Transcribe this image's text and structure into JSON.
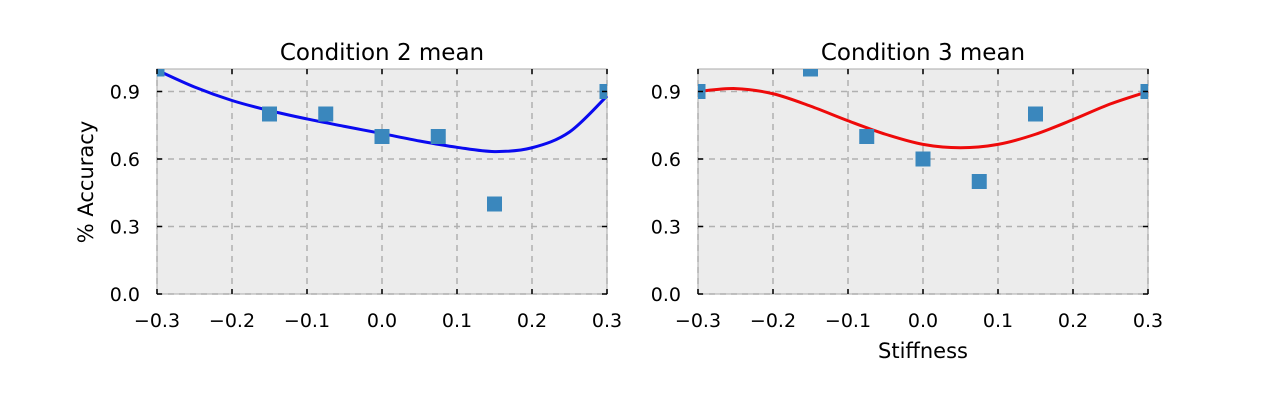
{
  "chart_data": [
    {
      "type": "scatter",
      "title": "Condition 2 mean",
      "xlabel": "",
      "ylabel": "% Accuracy",
      "xlim": [
        -0.3,
        0.3
      ],
      "ylim": [
        0.0,
        1.0
      ],
      "xticks": [
        "−0.3",
        "−0.2",
        "−0.1",
        "0.0",
        "0.1",
        "0.2",
        "0.3"
      ],
      "yticks": [
        "0.0",
        "0.3",
        "0.6",
        "0.9"
      ],
      "grid": true,
      "points": {
        "color": "#3a87bd",
        "x": [
          -0.3,
          -0.15,
          -0.075,
          0.0,
          0.075,
          0.15,
          0.3
        ],
        "y": [
          1.0,
          0.8,
          0.8,
          0.7,
          0.7,
          0.4,
          0.9
        ]
      },
      "fit_line": {
        "color": "#0a0af0",
        "x": [
          -0.3,
          -0.25,
          -0.2,
          -0.15,
          -0.1,
          -0.05,
          0.0,
          0.05,
          0.1,
          0.15,
          0.2,
          0.25,
          0.3
        ],
        "y": [
          0.995,
          0.92,
          0.86,
          0.815,
          0.778,
          0.745,
          0.713,
          0.68,
          0.652,
          0.633,
          0.65,
          0.72,
          0.88
        ]
      }
    },
    {
      "type": "scatter",
      "title": "Condition 3 mean",
      "xlabel": "Stiffness",
      "ylabel": "",
      "xlim": [
        -0.3,
        0.3
      ],
      "ylim": [
        0.0,
        1.0
      ],
      "xticks": [
        "−0.3",
        "−0.2",
        "−0.1",
        "0.0",
        "0.1",
        "0.2",
        "0.3"
      ],
      "yticks": [
        "0.0",
        "0.3",
        "0.6",
        "0.9"
      ],
      "grid": true,
      "points": {
        "color": "#3a87bd",
        "x": [
          -0.3,
          -0.15,
          -0.075,
          0.0,
          0.075,
          0.15,
          0.3
        ],
        "y": [
          0.9,
          1.0,
          0.7,
          0.6,
          0.5,
          0.8,
          0.9
        ]
      },
      "fit_line": {
        "color": "#ee0a0a",
        "x": [
          -0.3,
          -0.25,
          -0.2,
          -0.15,
          -0.1,
          -0.05,
          0.0,
          0.05,
          0.1,
          0.15,
          0.2,
          0.25,
          0.3
        ],
        "y": [
          0.9,
          0.913,
          0.89,
          0.835,
          0.77,
          0.71,
          0.665,
          0.65,
          0.665,
          0.71,
          0.775,
          0.845,
          0.9
        ]
      }
    }
  ]
}
